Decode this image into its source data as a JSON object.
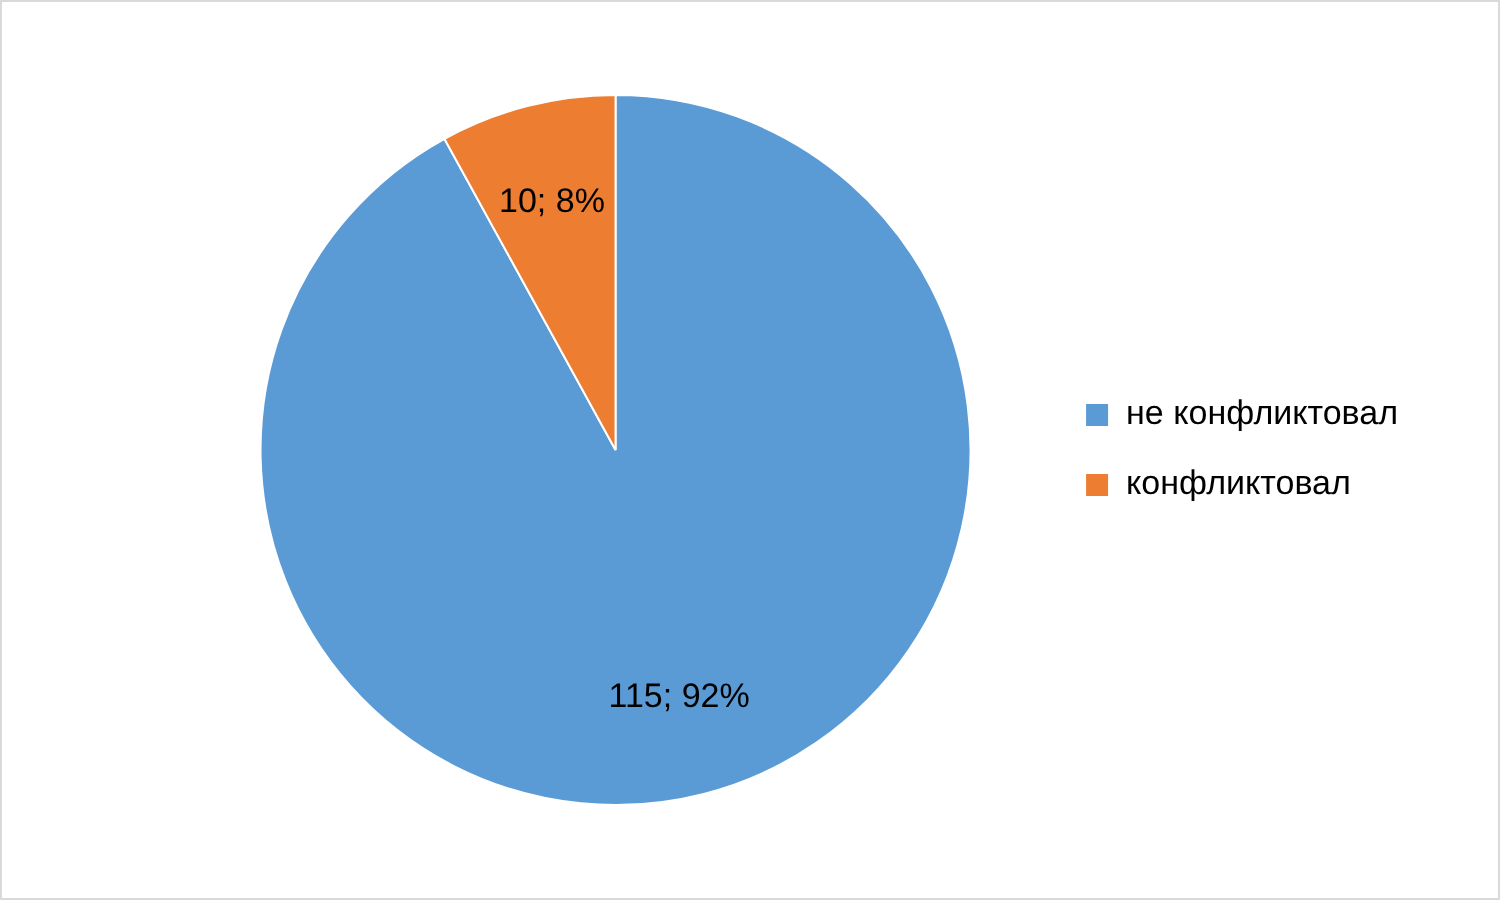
{
  "chart_data": {
    "type": "pie",
    "categories": [
      "не конфликтовал",
      "конфликтовал"
    ],
    "values": [
      115,
      10
    ],
    "colors": [
      "#5b9bd5",
      "#ed7d31"
    ],
    "value_labels": [
      "115; 92%",
      "10; 8%"
    ],
    "legend": "right"
  }
}
